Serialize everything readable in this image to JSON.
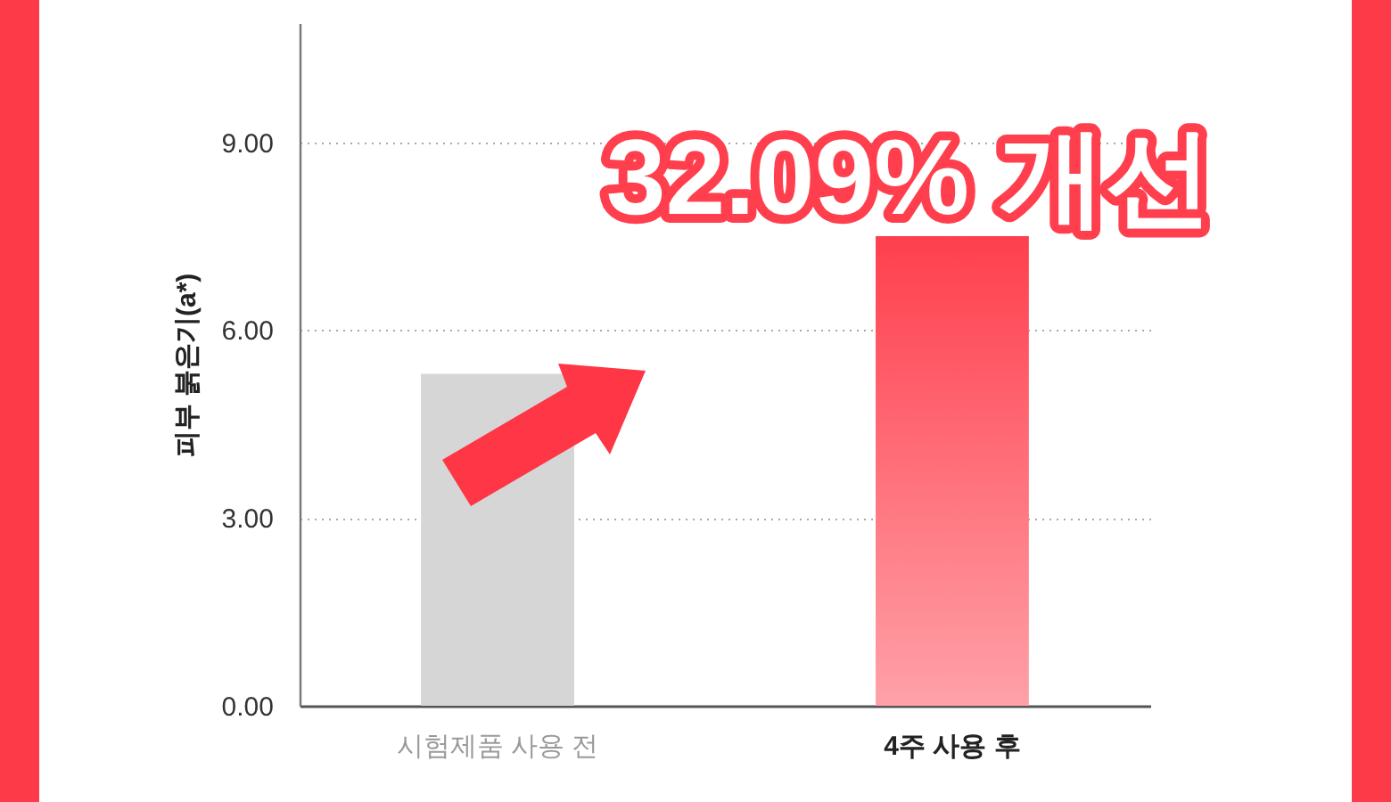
{
  "chart_data": {
    "type": "bar",
    "ylabel": "피부 붉은기(a*)",
    "categories": [
      "시험제품 사용 전",
      "4주 사용 후"
    ],
    "values": [
      5.3,
      7.5
    ],
    "colors": [
      "#d6d6d6",
      "#ff3f4d"
    ],
    "ylim": [
      0,
      10.9
    ],
    "yticks": [
      {
        "value": 0,
        "label": "0.00"
      },
      {
        "value": 3,
        "label": "3.00"
      },
      {
        "value": 6,
        "label": "6.00"
      },
      {
        "value": 9,
        "label": "9.00"
      }
    ],
    "grid": "y",
    "annotations": [
      "32.09% 개선"
    ]
  }
}
